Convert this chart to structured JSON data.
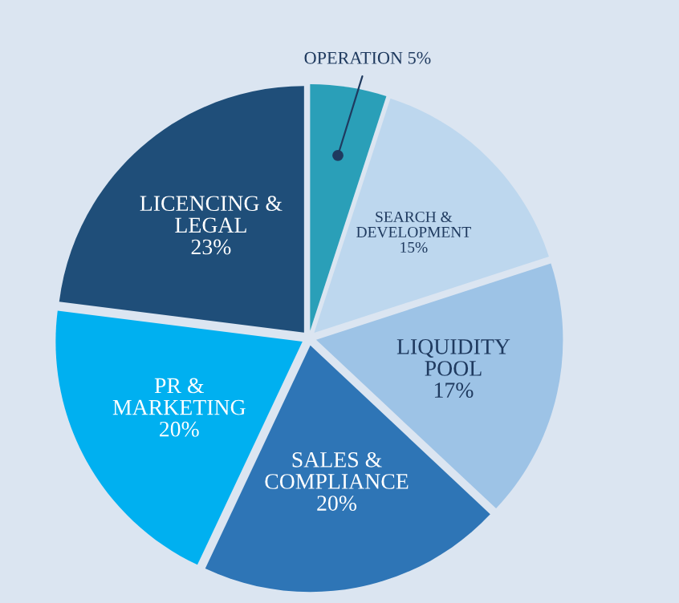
{
  "chart_data": {
    "type": "pie",
    "categories": [
      "OPERATION",
      "SEARCH &\nDEVELOPMENT",
      "LIQUIDITY\nPOOL",
      "SALES &\nCOMPLIANCE",
      "PR &\nMARKETING",
      "LICENCING &\nLEGAL"
    ],
    "values": [
      5,
      15,
      17,
      20,
      20,
      23
    ],
    "value_labels": [
      "5%",
      "15%",
      "17%",
      "20%",
      "20%",
      "23%"
    ],
    "colors": [
      "#2a9fb8",
      "#bdd7ee",
      "#9dc3e6",
      "#2e75b6",
      "#00b0f0",
      "#1f4e79"
    ],
    "legend": false
  }
}
